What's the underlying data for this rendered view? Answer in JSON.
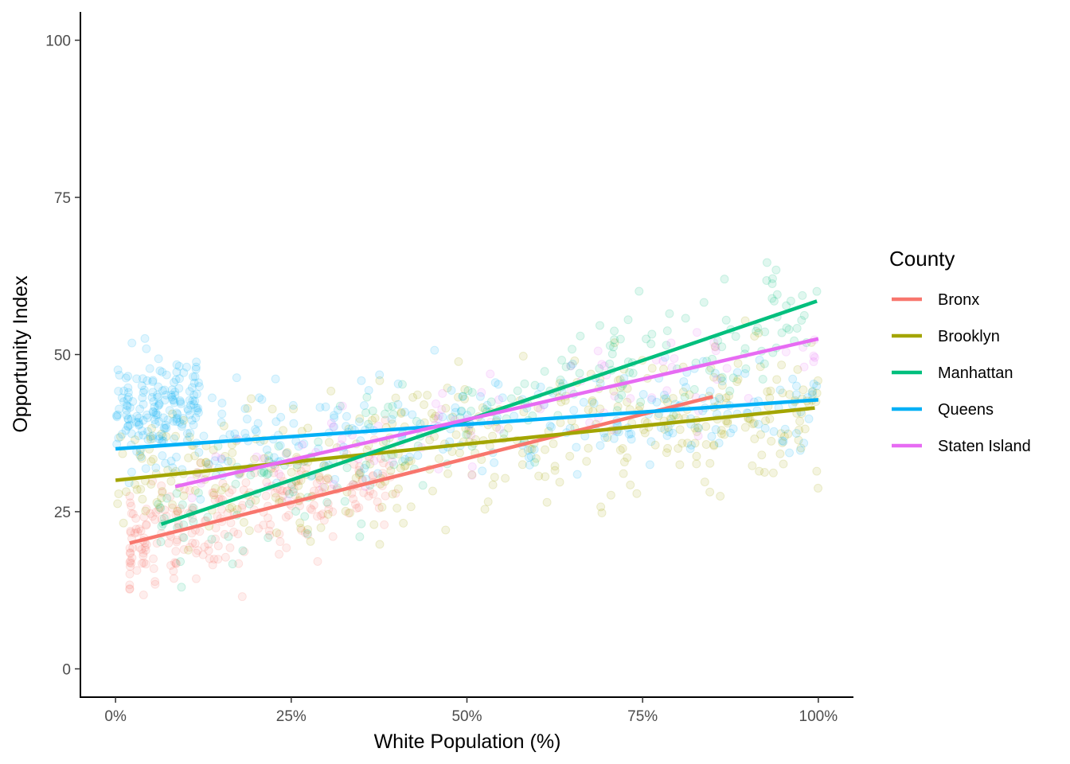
{
  "chart_data": {
    "type": "scatter",
    "title": "",
    "xlabel": "White Population (%)",
    "ylabel": "Opportunity Index",
    "xlim": [
      -0.05,
      1.05
    ],
    "ylim": [
      -4.5,
      104.5
    ],
    "x_ticks": [
      0,
      0.25,
      0.5,
      0.75,
      1.0
    ],
    "x_tick_labels": [
      "0%",
      "25%",
      "50%",
      "75%",
      "100%"
    ],
    "y_ticks": [
      0,
      25,
      50,
      75,
      100
    ],
    "y_tick_labels": [
      "0",
      "25",
      "50",
      "75",
      "100"
    ],
    "grid": false,
    "point_alpha": 0.12,
    "legend": {
      "title": "County",
      "position": "right"
    },
    "series": [
      {
        "name": "Bronx",
        "color": "#F8766D",
        "fit_line": {
          "x": [
            0.02,
            0.85
          ],
          "y": [
            20,
            43.3
          ]
        }
      },
      {
        "name": "Brooklyn",
        "color": "#A3A500",
        "fit_line": {
          "x": [
            0.0,
            0.995
          ],
          "y": [
            30,
            41.5
          ]
        }
      },
      {
        "name": "Manhattan",
        "color": "#00BF7D",
        "fit_line": {
          "x": [
            0.065,
            0.998
          ],
          "y": [
            23,
            58.5
          ]
        }
      },
      {
        "name": "Queens",
        "color": "#00B0F6",
        "fit_line": {
          "x": [
            0.0,
            1.0
          ],
          "y": [
            35,
            42.8
          ]
        }
      },
      {
        "name": "Staten Island",
        "color": "#E76BF3",
        "fit_line": {
          "x": [
            0.085,
            1.0
          ],
          "y": [
            29,
            52.5
          ]
        }
      }
    ]
  }
}
